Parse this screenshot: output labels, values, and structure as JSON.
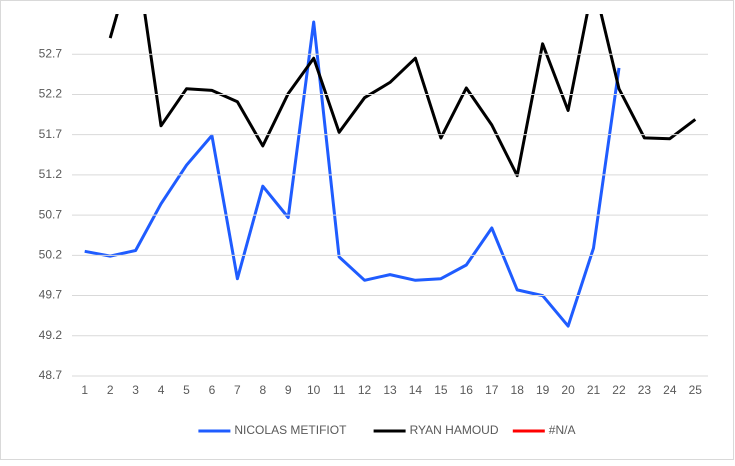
{
  "chart_data": {
    "type": "line",
    "categories": [
      "1",
      "2",
      "3",
      "4",
      "5",
      "6",
      "7",
      "8",
      "9",
      "10",
      "11",
      "12",
      "13",
      "14",
      "15",
      "16",
      "17",
      "18",
      "19",
      "20",
      "21",
      "22",
      "23",
      "24",
      "25"
    ],
    "series": [
      {
        "name": "NICOLAS METIFIOT",
        "color": "#1f5cff",
        "values": [
          50.25,
          50.19,
          50.26,
          50.84,
          51.32,
          51.69,
          49.91,
          51.06,
          50.67,
          53.1,
          50.18,
          49.89,
          49.96,
          49.89,
          49.91,
          50.08,
          50.54,
          49.77,
          49.7,
          49.32,
          50.29,
          52.53,
          null,
          null,
          null
        ]
      },
      {
        "name": "RYAN HAMOUD",
        "color": "#000000",
        "values": [
          null,
          52.9,
          54.0,
          51.81,
          52.27,
          52.25,
          52.11,
          51.56,
          52.21,
          52.65,
          51.73,
          52.16,
          52.35,
          52.65,
          51.66,
          52.28,
          51.82,
          51.19,
          52.83,
          52.0,
          53.6,
          52.27,
          51.66,
          51.65,
          51.89
        ]
      },
      {
        "name": "#N/A",
        "color": "#ff0000",
        "values": [
          null,
          null,
          null,
          null,
          null,
          null,
          null,
          null,
          null,
          null,
          null,
          null,
          null,
          null,
          null,
          null,
          null,
          null,
          null,
          null,
          null,
          null,
          null,
          null,
          null
        ]
      }
    ],
    "ylim": [
      48.7,
      53.2
    ],
    "yticks": [
      48.7,
      49.2,
      49.7,
      50.2,
      50.7,
      51.2,
      51.7,
      52.2,
      52.7
    ],
    "grid": true,
    "legend": "bottom"
  }
}
